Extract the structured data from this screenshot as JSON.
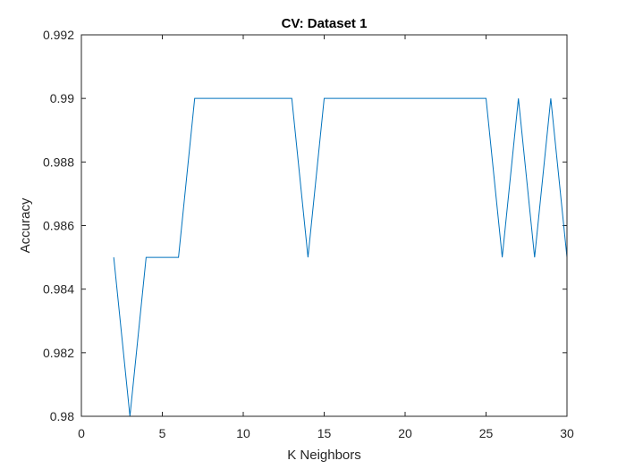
{
  "chart_data": {
    "type": "line",
    "title": "CV: Dataset 1",
    "xlabel": "K Neighbors",
    "ylabel": "Accuracy",
    "xlim": [
      0,
      30
    ],
    "ylim": [
      0.98,
      0.992
    ],
    "xticks": [
      "0",
      "5",
      "10",
      "15",
      "20",
      "25",
      "30"
    ],
    "yticks": [
      "0.98",
      "0.982",
      "0.984",
      "0.986",
      "0.988",
      "0.99",
      "0.992"
    ],
    "grid": false,
    "line_color": "#0072BD",
    "series": [
      {
        "x": [
          2,
          3,
          4,
          5,
          6,
          7,
          8,
          9,
          10,
          11,
          12,
          13,
          14,
          15,
          16,
          17,
          18,
          19,
          20,
          21,
          22,
          23,
          24,
          25,
          26,
          27,
          28,
          29,
          30
        ],
        "y": [
          0.985,
          0.98,
          0.985,
          0.985,
          0.985,
          0.99,
          0.99,
          0.99,
          0.99,
          0.99,
          0.99,
          0.99,
          0.985,
          0.99,
          0.99,
          0.99,
          0.99,
          0.99,
          0.99,
          0.99,
          0.99,
          0.99,
          0.99,
          0.99,
          0.985,
          0.99,
          0.985,
          0.99,
          0.985
        ]
      }
    ]
  }
}
